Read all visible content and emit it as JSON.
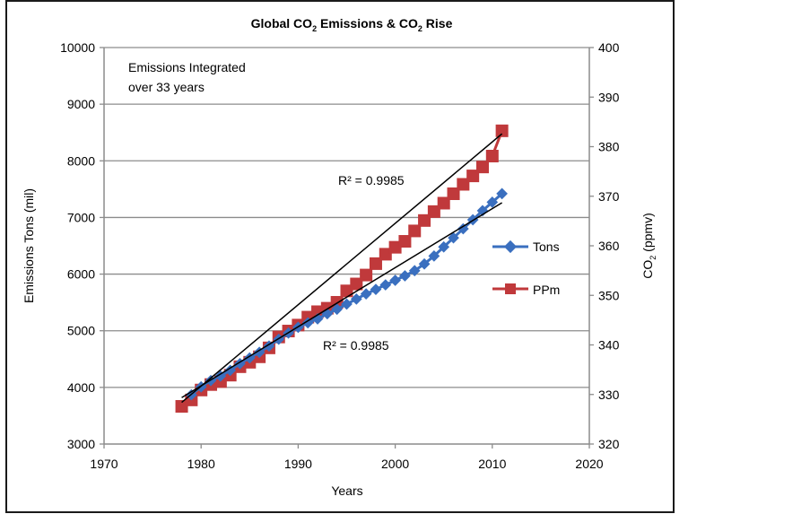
{
  "chart_data": {
    "type": "line",
    "title": "Global CO₂ Emissions & CO₂ Rise",
    "title_parts": {
      "a": "Global CO",
      "sub1": "2",
      "b": " Emissions & CO",
      "sub2": "2",
      "c": " Rise"
    },
    "xlabel": "Years",
    "ylabel": "Emissions Tons (mil)",
    "y2label": {
      "main": "CO",
      "sub": "2",
      "rest": " (ppmv)"
    },
    "xlim": [
      1970,
      2020
    ],
    "ylim": [
      3000,
      10000
    ],
    "y2lim": [
      320,
      400
    ],
    "xticks": [
      1970,
      1980,
      1990,
      2000,
      2010,
      2020
    ],
    "yticks": [
      3000,
      4000,
      5000,
      6000,
      7000,
      8000,
      9000,
      10000
    ],
    "y2ticks": [
      320,
      330,
      340,
      350,
      360,
      370,
      380,
      390,
      400
    ],
    "grid": "horizontal",
    "legend_position": "right",
    "series": [
      {
        "name": "Tons",
        "axis": "left",
        "color": "#3a6fbf",
        "marker": "diamond",
        "x": [
          1979,
          1980,
          1981,
          1982,
          1983,
          1984,
          1985,
          1986,
          1987,
          1988,
          1989,
          1990,
          1991,
          1992,
          1993,
          1994,
          1995,
          1996,
          1997,
          1998,
          1999,
          2000,
          2001,
          2002,
          2003,
          2004,
          2005,
          2006,
          2007,
          2008,
          2009,
          2010,
          2011
        ],
        "values": [
          3870,
          4010,
          4120,
          4200,
          4300,
          4420,
          4520,
          4620,
          4730,
          4850,
          4960,
          5060,
          5140,
          5210,
          5300,
          5380,
          5470,
          5560,
          5650,
          5730,
          5810,
          5890,
          5970,
          6060,
          6180,
          6320,
          6480,
          6640,
          6800,
          6960,
          7120,
          7270,
          7420
        ],
        "trendline": {
          "x": [
            1978,
            2011
          ],
          "values": [
            3820,
            7260
          ]
        },
        "r2_label": "R² = 0.9985"
      },
      {
        "name": "PPm",
        "axis": "right",
        "color": "#c0393b",
        "marker": "square",
        "x": [
          1978,
          1979,
          1980,
          1981,
          1982,
          1983,
          1984,
          1985,
          1986,
          1987,
          1988,
          1989,
          1990,
          1991,
          1992,
          1993,
          1994,
          1995,
          1996,
          1997,
          1998,
          1999,
          2000,
          2001,
          2002,
          2003,
          2004,
          2005,
          2006,
          2007,
          2008,
          2009,
          2010,
          2011
        ],
        "values": [
          327.6,
          328.9,
          330.9,
          332.0,
          332.6,
          333.9,
          335.6,
          336.5,
          337.6,
          339.4,
          341.6,
          342.8,
          344.0,
          345.6,
          346.7,
          347.4,
          348.6,
          350.9,
          352.3,
          354.1,
          356.4,
          358.3,
          359.7,
          360.9,
          363.0,
          365.1,
          366.9,
          368.6,
          370.5,
          372.4,
          374.1,
          375.9,
          378.1,
          383.2
        ],
        "trendline": {
          "x": [
            1978,
            2011
          ],
          "values": [
            328.4,
            382.6
          ]
        },
        "r2_label": "R² = 0.9985"
      }
    ],
    "annotations": [
      "Emissions Integrated",
      "over 33 years"
    ]
  }
}
